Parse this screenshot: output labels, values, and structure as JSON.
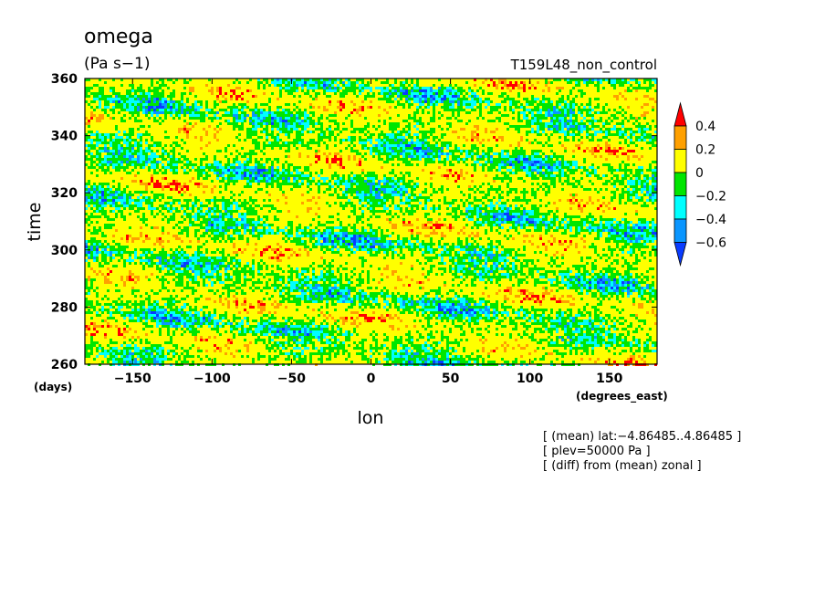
{
  "header": {
    "variable": "omega",
    "units": "(Pa s−1)",
    "experiment": "T159L48_non_control"
  },
  "info_lines": [
    "[ (mean) lat:−4.86485..4.86485 ]",
    "[ plev=50000 Pa ]",
    "[ (diff) from (mean) zonal ]"
  ],
  "chart_data": {
    "type": "heatmap",
    "title": "omega",
    "subtitle": "(Pa s−1)",
    "xlabel": "lon",
    "ylabel": "time",
    "x_units": "(degrees_east)",
    "y_units": "(days)",
    "xlim": [
      -180,
      180
    ],
    "ylim": [
      260,
      360
    ],
    "x_ticks": [
      -150,
      -100,
      -50,
      0,
      50,
      100,
      150
    ],
    "x_tick_labels": [
      "−150",
      "−100",
      "−50",
      "0",
      "50",
      "100",
      "150"
    ],
    "y_ticks": [
      260,
      280,
      300,
      320,
      340,
      360
    ],
    "y_tick_labels": [
      "260",
      "280",
      "300",
      "320",
      "340",
      "360"
    ],
    "colorbar": {
      "levels": [
        -0.6,
        -0.4,
        -0.2,
        0,
        0.2,
        0.4
      ],
      "level_labels": [
        "−0.6",
        "−0.4",
        "−0.2",
        "0",
        "0.2",
        "0.4"
      ],
      "colors": [
        "#0a3cff",
        "#0a96ff",
        "#00ffff",
        "#00e600",
        "#ffff00",
        "#ffa000",
        "#ff0000"
      ],
      "extend": "both"
    },
    "field_description_values": {
      "dominant_bins": [
        "0..0.2",
        "-0.2..0"
      ],
      "propagation": "eastward-propagating negative anomalies (slanted bands)"
    }
  }
}
